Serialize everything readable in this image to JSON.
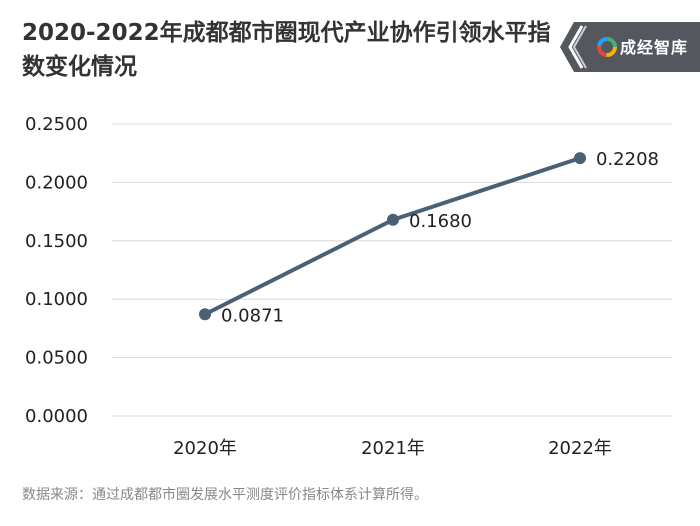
{
  "title": "2020-2022年成都都市圈现代产业协作引领水平指数变化情况",
  "logo": {
    "text": "成经智库",
    "icon": "colorful-ring-icon"
  },
  "source": "数据来源：通过成都都市圈发展水平测度评价指标体系计算所得。",
  "colors": {
    "line": "#4a6075",
    "grid": "#d9d9d9",
    "logo_bg": "#54585e"
  },
  "chart_data": {
    "type": "line",
    "categories": [
      "2020年",
      "2021年",
      "2022年"
    ],
    "series": [
      {
        "values": [
          0.0871,
          0.168,
          0.2208
        ]
      }
    ],
    "value_labels": [
      "0.0871",
      "0.1680",
      "0.2208"
    ],
    "yticks": [
      0,
      0.05,
      0.1,
      0.15,
      0.2,
      0.25
    ],
    "ytick_labels": [
      "0.0000",
      "0.0500",
      "0.1000",
      "0.1500",
      "0.2000",
      "0.2500"
    ],
    "ylim": [
      0,
      0.25
    ],
    "grid": true,
    "legend": "none"
  }
}
